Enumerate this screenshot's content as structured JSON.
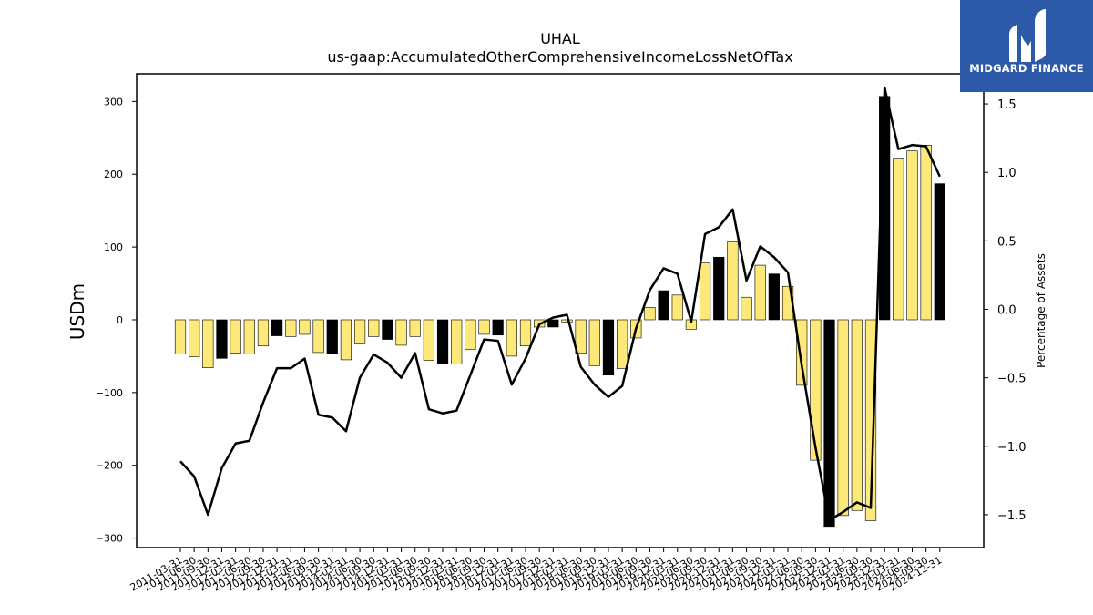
{
  "logo": {
    "text": "MIDGARD FINANCE"
  },
  "chart_data": {
    "type": "bar",
    "title": "UHAL",
    "subtitle": "us-gaap:AccumulatedOtherComprehensiveIncomeLossNetOfTax",
    "ylabel": "USDm",
    "y2label": "Percentage of Assets",
    "ylim": [
      -313,
      338
    ],
    "y2lim": [
      -1.74,
      1.72
    ],
    "yticks": [
      -300,
      -200,
      -100,
      0,
      100,
      200,
      300
    ],
    "y2ticks": [
      -1.5,
      -1.0,
      -0.5,
      0.0,
      0.5,
      1.0,
      1.5
    ],
    "ytick_labels": [
      "−300",
      "−200",
      "−100",
      "0",
      "100",
      "200",
      "300"
    ],
    "y2tick_labels": [
      "−1.5",
      "−1.0",
      "−0.5",
      "0.0",
      "0.5",
      "1.0",
      "1.5"
    ],
    "grid": false,
    "colors": {
      "bar_default": "#fce97a",
      "bar_highlight": "#000000",
      "line": "#000000"
    },
    "categories": [
      "2011-03-31",
      "2011-06-30",
      "2011-09-30",
      "2011-12-31",
      "2012-03-31",
      "2012-06-30",
      "2012-09-30",
      "2012-12-31",
      "2013-03-31",
      "2013-06-30",
      "2013-09-30",
      "2013-12-31",
      "2014-03-31",
      "2014-06-30",
      "2014-09-30",
      "2014-12-31",
      "2015-03-31",
      "2015-06-30",
      "2015-09-30",
      "2015-12-31",
      "2016-03-31",
      "2016-06-30",
      "2016-09-30",
      "2016-12-31",
      "2017-03-31",
      "2017-06-30",
      "2017-09-30",
      "2017-12-31",
      "2018-03-31",
      "2018-06-30",
      "2018-09-30",
      "2018-12-31",
      "2019-03-31",
      "2019-06-30",
      "2019-09-30",
      "2019-12-31",
      "2020-03-31",
      "2020-06-30",
      "2020-09-30",
      "2020-12-31",
      "2021-03-31",
      "2021-06-30",
      "2021-09-30",
      "2021-12-31",
      "2022-03-31",
      "2022-06-30",
      "2022-09-30",
      "2022-12-31",
      "2023-03-31",
      "2023-06-30",
      "2023-09-30",
      "2023-12-31",
      "2024-03-31",
      "2024-06-30",
      "2024-09-30",
      "2024-12-31"
    ],
    "series": [
      {
        "kind": "bar",
        "axis": "left",
        "values": [
          -47,
          -51,
          -66,
          -53,
          -46,
          -47,
          -36,
          -22,
          -23,
          -20,
          -45,
          -46,
          -55,
          -33,
          -23,
          -27,
          -35,
          -23,
          -56,
          -60,
          -61,
          -41,
          -20,
          -21,
          -50,
          -36,
          -10,
          -10,
          -3,
          -46,
          -63,
          -76,
          -67,
          -25,
          17,
          40,
          34,
          -13,
          78,
          86,
          107,
          31,
          75,
          63,
          46,
          -90,
          -193,
          -284,
          -269,
          -262,
          -276,
          307,
          222,
          232,
          240,
          187
        ],
        "highlight": [
          false,
          false,
          false,
          true,
          false,
          false,
          false,
          true,
          false,
          false,
          false,
          true,
          false,
          false,
          false,
          true,
          false,
          false,
          false,
          true,
          false,
          false,
          false,
          true,
          false,
          false,
          false,
          true,
          false,
          false,
          false,
          true,
          false,
          false,
          false,
          true,
          false,
          false,
          false,
          true,
          false,
          false,
          false,
          true,
          false,
          false,
          false,
          true,
          false,
          false,
          false,
          true,
          false,
          false,
          false,
          true
        ]
      },
      {
        "kind": "line",
        "axis": "right",
        "values": [
          -1.11,
          -1.22,
          -1.5,
          -1.16,
          -0.98,
          -0.96,
          -0.68,
          -0.43,
          -0.43,
          -0.36,
          -0.77,
          -0.79,
          -0.89,
          -0.5,
          -0.33,
          -0.39,
          -0.5,
          -0.32,
          -0.73,
          -0.76,
          -0.74,
          -0.48,
          -0.22,
          -0.23,
          -0.55,
          -0.36,
          -0.11,
          -0.06,
          -0.04,
          -0.42,
          -0.55,
          -0.64,
          -0.56,
          -0.14,
          0.14,
          0.3,
          0.26,
          -0.09,
          0.55,
          0.6,
          0.73,
          0.21,
          0.46,
          0.38,
          0.27,
          -0.41,
          -1.01,
          -1.54,
          -1.48,
          -1.41,
          -1.45,
          1.62,
          1.17,
          1.2,
          1.19,
          0.97
        ]
      }
    ]
  }
}
